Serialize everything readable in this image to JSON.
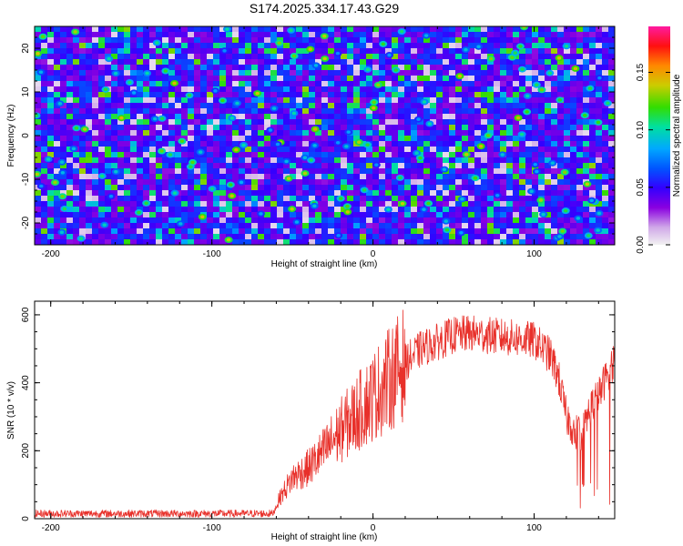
{
  "title": "S174.2025.334.17.43.G29",
  "colors": {
    "line": "#e8302a",
    "colormap": [
      "#f2f2f2",
      "#d0a8e8",
      "#8a00e0",
      "#3300ff",
      "#0055ff",
      "#00a8ff",
      "#00e0a0",
      "#33dd00",
      "#cccc00",
      "#ff8800",
      "#ff1010",
      "#ff1aa0"
    ]
  },
  "chart_data": [
    {
      "type": "heatmap",
      "title": "S174.2025.334.17.43.G29",
      "xlabel": "Height of straight line (km)",
      "ylabel": "Frequency (Hz)",
      "xlim": [
        -210,
        150
      ],
      "ylim": [
        -25,
        25
      ],
      "xticks": [
        -200,
        -100,
        0,
        100
      ],
      "yticks": [
        -20,
        -10,
        0,
        10,
        20
      ],
      "x_tick_labels": [
        "-200",
        "-100",
        "0",
        "100"
      ],
      "y_tick_labels": [
        "-20",
        "-10",
        "0",
        "10",
        "20"
      ],
      "colorbar": {
        "label": "Normalized spectral amplitude",
        "range": [
          0.0,
          0.19
        ],
        "ticks": [
          0.0,
          0.05,
          0.1,
          0.15
        ],
        "tick_labels": [
          "0.00",
          "0.05",
          "0.10",
          "0.15"
        ]
      },
      "description_note": "noise-like field; amplitude mostly 0.02-0.08 with scattered peaks up to ~0.15"
    },
    {
      "type": "line",
      "xlabel": "Height of straight line (km)",
      "ylabel": "SNR (10 * v/v)",
      "xlim": [
        -210,
        150
      ],
      "ylim": [
        0,
        640
      ],
      "xticks": [
        -200,
        -100,
        0,
        100
      ],
      "yticks": [
        0,
        200,
        400,
        600
      ],
      "x_tick_labels": [
        "-200",
        "-100",
        "0",
        "100"
      ],
      "y_tick_labels": [
        "0",
        "200",
        "400",
        "600"
      ],
      "series": [
        {
          "name": "SNR",
          "x": [
            -210,
            -180,
            -150,
            -120,
            -90,
            -62,
            -58,
            -50,
            -40,
            -30,
            -20,
            -10,
            0,
            10,
            20,
            30,
            40,
            50,
            60,
            70,
            80,
            90,
            100,
            110,
            115,
            120,
            125,
            130,
            135,
            140,
            145,
            150
          ],
          "y": [
            15,
            15,
            15,
            15,
            15,
            15,
            60,
            120,
            150,
            200,
            260,
            310,
            360,
            410,
            460,
            500,
            520,
            540,
            545,
            540,
            535,
            530,
            525,
            480,
            420,
            300,
            260,
            250,
            330,
            360,
            420,
            470
          ]
        }
      ]
    }
  ]
}
